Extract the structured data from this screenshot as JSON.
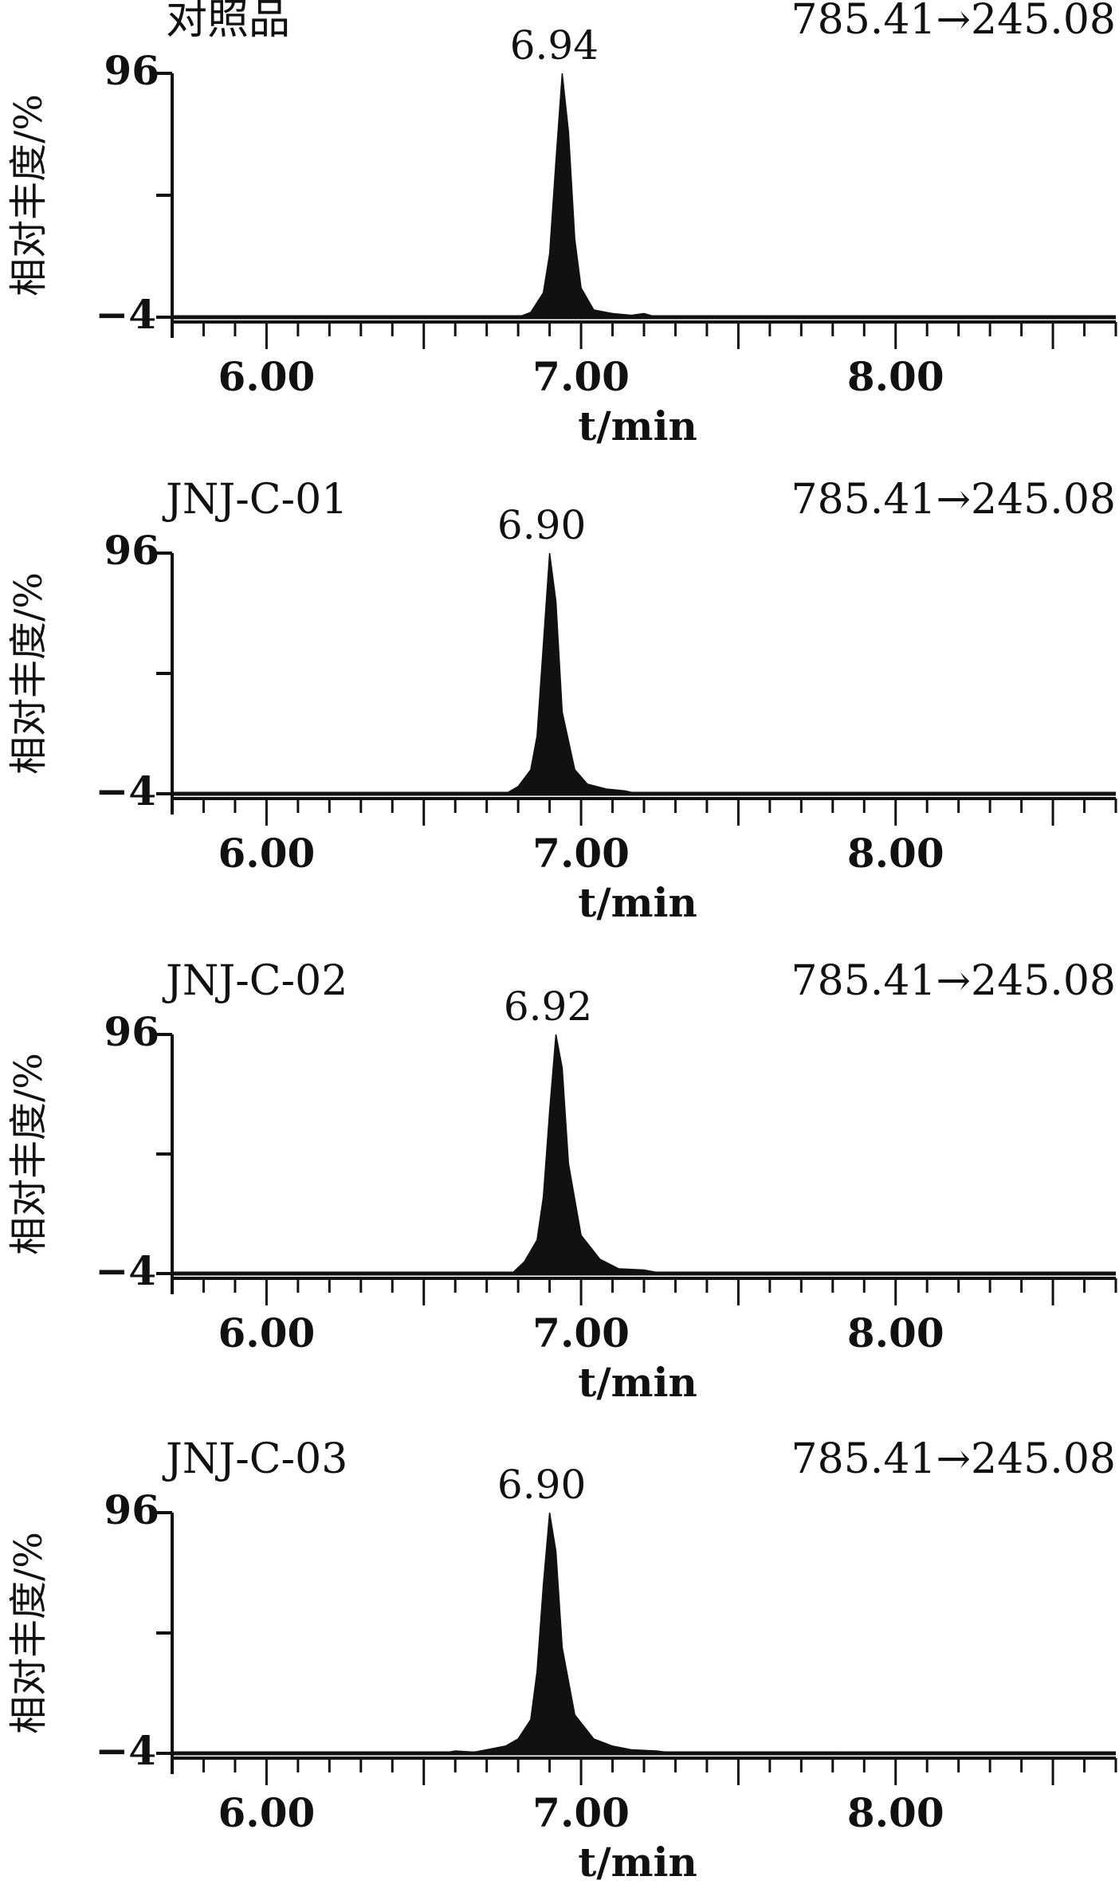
{
  "colors": {
    "ink": "#111111",
    "background": "#ffffff"
  },
  "chart_data": [
    {
      "type": "area",
      "title": "对照品",
      "transition": "785.41→245.08",
      "peak_label": "6.94",
      "xlabel": "t/min",
      "ylabel": "相对丰度/%",
      "xlim": [
        5.7,
        8.7
      ],
      "ylim": [
        -4,
        96
      ],
      "x_ticks": [
        "6.00",
        "7.00",
        "8.00"
      ],
      "y_ticks": [
        "96",
        "−4"
      ],
      "peak": {
        "x": 6.94,
        "y": 96
      },
      "trace": [
        [
          5.7,
          -4
        ],
        [
          6.8,
          -4
        ],
        [
          6.84,
          -2
        ],
        [
          6.88,
          6
        ],
        [
          6.9,
          22
        ],
        [
          6.92,
          60
        ],
        [
          6.94,
          96
        ],
        [
          6.96,
          72
        ],
        [
          6.98,
          28
        ],
        [
          7.0,
          8
        ],
        [
          7.04,
          -1
        ],
        [
          7.1,
          -2.5
        ],
        [
          7.16,
          -3.2
        ],
        [
          7.2,
          -2.5
        ],
        [
          7.24,
          -4
        ],
        [
          8.7,
          -4
        ]
      ],
      "grid": false
    },
    {
      "type": "area",
      "title": "JNJ-C-01",
      "transition": "785.41→245.08",
      "peak_label": "6.90",
      "xlabel": "t/min",
      "ylabel": "相对丰度/%",
      "xlim": [
        5.7,
        8.7
      ],
      "ylim": [
        -4,
        96
      ],
      "x_ticks": [
        "6.00",
        "7.00",
        "8.00"
      ],
      "y_ticks": [
        "96",
        "−4"
      ],
      "peak": {
        "x": 6.9,
        "y": 96
      },
      "trace": [
        [
          5.7,
          -4
        ],
        [
          6.76,
          -4
        ],
        [
          6.8,
          -1
        ],
        [
          6.84,
          6
        ],
        [
          6.86,
          20
        ],
        [
          6.88,
          58
        ],
        [
          6.9,
          96
        ],
        [
          6.92,
          76
        ],
        [
          6.94,
          30
        ],
        [
          6.98,
          6
        ],
        [
          7.02,
          0
        ],
        [
          7.08,
          -2
        ],
        [
          7.14,
          -2.8
        ],
        [
          7.18,
          -4
        ],
        [
          8.7,
          -4
        ]
      ],
      "grid": false
    },
    {
      "type": "area",
      "title": "JNJ-C-02",
      "transition": "785.41→245.08",
      "peak_label": "6.92",
      "xlabel": "t/min",
      "ylabel": "相对丰度/%",
      "xlim": [
        5.7,
        8.7
      ],
      "ylim": [
        -4,
        96
      ],
      "x_ticks": [
        "6.00",
        "7.00",
        "8.00"
      ],
      "y_ticks": [
        "96",
        "−4"
      ],
      "peak": {
        "x": 6.92,
        "y": 96
      },
      "trace": [
        [
          5.7,
          -4
        ],
        [
          6.78,
          -4
        ],
        [
          6.82,
          1
        ],
        [
          6.86,
          10
        ],
        [
          6.88,
          28
        ],
        [
          6.9,
          64
        ],
        [
          6.92,
          96
        ],
        [
          6.94,
          82
        ],
        [
          6.96,
          42
        ],
        [
          7.0,
          12
        ],
        [
          7.06,
          2
        ],
        [
          7.12,
          -2
        ],
        [
          7.2,
          -2.5
        ],
        [
          7.26,
          -4
        ],
        [
          8.7,
          -4
        ]
      ],
      "grid": false
    },
    {
      "type": "area",
      "title": "JNJ-C-03",
      "transition": "785.41→245.08",
      "peak_label": "6.90",
      "xlabel": "t/min",
      "ylabel": "相对丰度/%",
      "xlim": [
        5.7,
        8.7
      ],
      "ylim": [
        -4,
        96
      ],
      "x_ticks": [
        "6.00",
        "7.00",
        "8.00"
      ],
      "y_ticks": [
        "96",
        "−4"
      ],
      "peak": {
        "x": 6.9,
        "y": 96
      },
      "trace": [
        [
          5.7,
          -4
        ],
        [
          6.56,
          -4
        ],
        [
          6.6,
          -3
        ],
        [
          6.66,
          -3.5
        ],
        [
          6.7,
          -2.5
        ],
        [
          6.76,
          -1
        ],
        [
          6.8,
          2
        ],
        [
          6.84,
          10
        ],
        [
          6.86,
          30
        ],
        [
          6.88,
          66
        ],
        [
          6.9,
          96
        ],
        [
          6.92,
          80
        ],
        [
          6.94,
          40
        ],
        [
          6.98,
          12
        ],
        [
          7.04,
          2
        ],
        [
          7.1,
          -1
        ],
        [
          7.16,
          -2.5
        ],
        [
          7.24,
          -3
        ],
        [
          7.3,
          -4
        ],
        [
          7.8,
          -4
        ],
        [
          7.82,
          -3.4
        ],
        [
          7.84,
          -4
        ],
        [
          8.7,
          -4
        ]
      ],
      "grid": false
    }
  ]
}
